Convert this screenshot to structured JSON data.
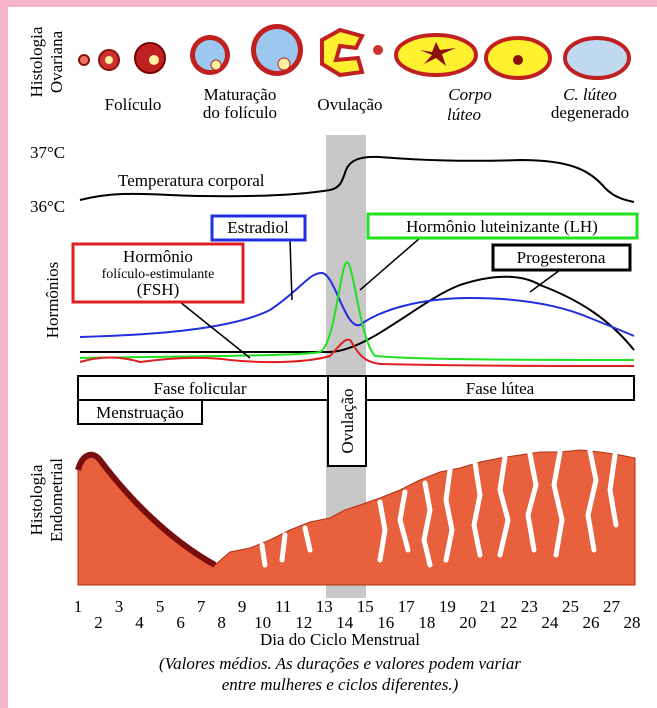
{
  "ovarian_histology": {
    "label": [
      "Histologia",
      "Ovariana"
    ],
    "stages": [
      [
        "Folículo"
      ],
      [
        "Maturação",
        "do folículo"
      ],
      [
        "Ovulação"
      ],
      [
        "Corpo",
        "lúteo"
      ],
      [
        "C. lúteo",
        "degenerado"
      ]
    ]
  },
  "temperature": {
    "high": "37°C",
    "low": "36°C",
    "label": "Temperatura corporal"
  },
  "hormones": {
    "axis_label": "Hormônios",
    "estradiol": "Estradiol",
    "lh": "Hormônio luteinizante (LH)",
    "fsh": [
      "Hormônio",
      "folículo-estimulante",
      "(FSH)"
    ],
    "progesterone": "Progesterona"
  },
  "phases": {
    "follicular": "Fase folicular",
    "menstruation": "Menstruação",
    "ovulation": "Ovulação",
    "luteal": "Fase lútea"
  },
  "endometrium": {
    "label": [
      "Histologia",
      "Endometrial"
    ]
  },
  "days": [
    "1",
    "2",
    "3",
    "4",
    "5",
    "6",
    "7",
    "8",
    "9",
    "10",
    "11",
    "12",
    "13",
    "14",
    "15",
    "16",
    "17",
    "18",
    "19",
    "20",
    "21",
    "22",
    "23",
    "24",
    "25",
    "26",
    "27",
    "28"
  ],
  "x_label": "Dia do Ciclo Menstrual",
  "note": [
    "(Valores médios. As durações e valores podem variar",
    "entre mulheres e ciclos diferentes.)"
  ]
}
